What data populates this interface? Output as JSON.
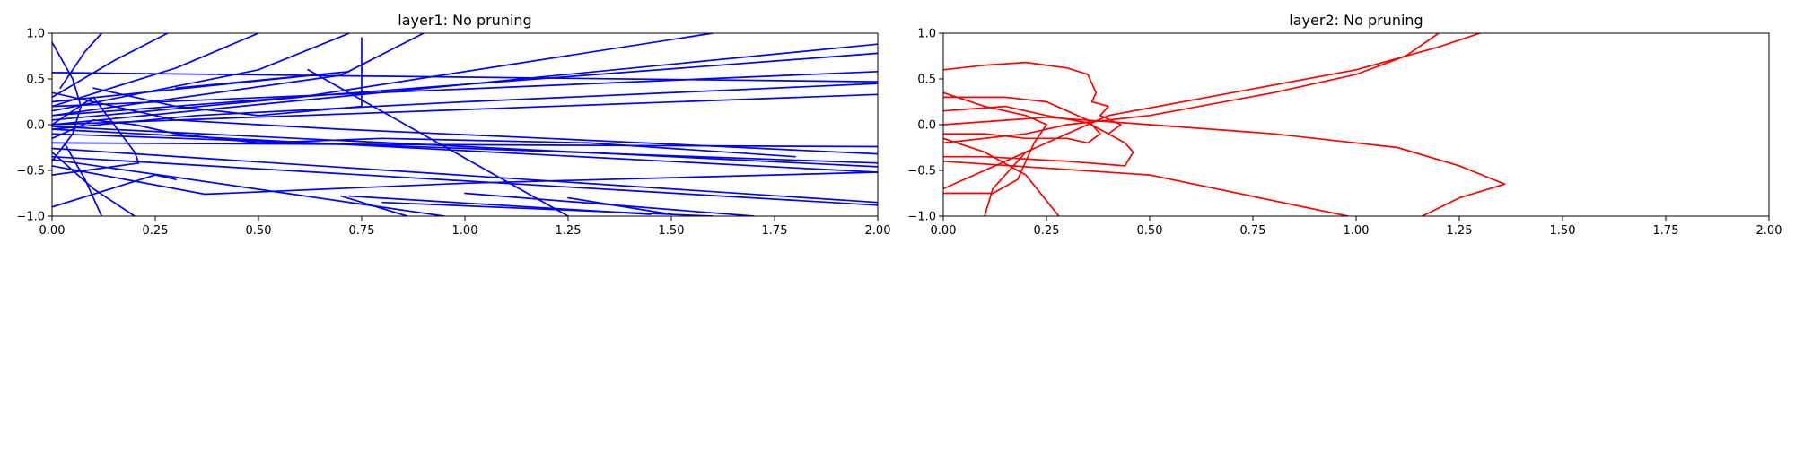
{
  "chart_data": [
    {
      "type": "line",
      "title": "layer1: No pruning",
      "xlabel": "",
      "ylabel": "",
      "xlim": [
        0.0,
        2.0
      ],
      "ylim": [
        -1.0,
        1.0
      ],
      "x_ticks": [
        "0.00",
        "0.25",
        "0.50",
        "0.75",
        "1.00",
        "1.25",
        "1.50",
        "1.75",
        "2.00"
      ],
      "y_ticks": [
        "−1.0",
        "−0.5",
        "0.0",
        "0.5",
        "1.0"
      ],
      "grid": false,
      "legend": "none",
      "color": "#0000ff",
      "series": [
        {
          "points": [
            [
              0.0,
              0.0
            ],
            [
              2.0,
              0.88
            ]
          ]
        },
        {
          "points": [
            [
              0.0,
              0.1
            ],
            [
              2.0,
              0.78
            ]
          ]
        },
        {
          "points": [
            [
              0.0,
              0.2
            ],
            [
              2.0,
              0.58
            ]
          ]
        },
        {
          "points": [
            [
              0.0,
              0.57
            ],
            [
              2.0,
              0.47
            ]
          ]
        },
        {
          "points": [
            [
              0.0,
              0.0
            ],
            [
              2.0,
              0.33
            ]
          ]
        },
        {
          "points": [
            [
              0.0,
              -0.02
            ],
            [
              2.0,
              -0.46
            ]
          ]
        },
        {
          "points": [
            [
              0.0,
              -0.05
            ],
            [
              2.0,
              -0.52
            ]
          ]
        },
        {
          "points": [
            [
              0.0,
              -0.1
            ],
            [
              2.0,
              -0.42
            ]
          ]
        },
        {
          "points": [
            [
              0.0,
              -0.2
            ],
            [
              2.0,
              -0.24
            ]
          ]
        },
        {
          "points": [
            [
              0.0,
              -0.26
            ],
            [
              2.0,
              -0.85
            ]
          ]
        },
        {
          "points": [
            [
              0.0,
              -0.35
            ],
            [
              2.0,
              -0.88
            ]
          ]
        },
        {
          "points": [
            [
              0.0,
              -0.45
            ],
            [
              0.37,
              -0.76
            ],
            [
              1.0,
              -0.64
            ],
            [
              2.0,
              -0.52
            ]
          ]
        },
        {
          "points": [
            [
              0.0,
              0.05
            ],
            [
              0.6,
              0.3
            ],
            [
              1.6,
              1.0
            ]
          ]
        },
        {
          "points": [
            [
              0.0,
              0.1
            ],
            [
              0.7,
              0.54
            ],
            [
              0.9,
              1.0
            ]
          ]
        },
        {
          "points": [
            [
              0.0,
              0.15
            ],
            [
              0.5,
              0.6
            ],
            [
              0.72,
              1.0
            ]
          ]
        },
        {
          "points": [
            [
              0.0,
              0.2
            ],
            [
              0.3,
              0.62
            ],
            [
              0.5,
              1.0
            ]
          ]
        },
        {
          "points": [
            [
              0.0,
              0.3
            ],
            [
              0.15,
              0.7
            ],
            [
              0.28,
              1.0
            ]
          ]
        },
        {
          "points": [
            [
              0.02,
              0.4
            ],
            [
              0.08,
              0.8
            ],
            [
              0.12,
              1.0
            ]
          ]
        },
        {
          "points": [
            [
              0.0,
              0.9
            ],
            [
              0.05,
              0.5
            ],
            [
              0.07,
              0.2
            ],
            [
              0.05,
              -0.1
            ],
            [
              0.0,
              -0.4
            ]
          ]
        },
        {
          "points": [
            [
              0.0,
              -0.3
            ],
            [
              0.1,
              -0.7
            ],
            [
              0.2,
              -1.0
            ]
          ]
        },
        {
          "points": [
            [
              0.03,
              -0.2
            ],
            [
              0.08,
              -0.6
            ],
            [
              0.12,
              -1.0
            ]
          ]
        },
        {
          "points": [
            [
              0.0,
              0.0
            ],
            [
              0.1,
              0.3
            ],
            [
              0.2,
              -0.3
            ],
            [
              0.21,
              -0.42
            ],
            [
              0.0,
              -0.55
            ]
          ]
        },
        {
          "points": [
            [
              0.0,
              -0.15
            ],
            [
              0.05,
              -0.05
            ],
            [
              0.1,
              0.05
            ],
            [
              0.2,
              0.0
            ],
            [
              0.3,
              -0.1
            ],
            [
              0.5,
              -0.2
            ],
            [
              0.8,
              -0.15
            ],
            [
              1.3,
              -0.2
            ],
            [
              1.8,
              -0.35
            ]
          ]
        },
        {
          "points": [
            [
              0.0,
              0.35
            ],
            [
              0.3,
              0.05
            ],
            [
              0.7,
              -0.05
            ],
            [
              1.2,
              -0.15
            ],
            [
              2.0,
              -0.32
            ]
          ]
        },
        {
          "points": [
            [
              0.75,
              0.95
            ],
            [
              0.75,
              0.2
            ],
            [
              0.5,
              0.1
            ],
            [
              0.3,
              0.2
            ],
            [
              0.1,
              0.4
            ]
          ]
        },
        {
          "points": [
            [
              0.62,
              0.6
            ],
            [
              1.25,
              -1.0
            ]
          ]
        },
        {
          "points": [
            [
              0.3,
              0.4
            ],
            [
              0.72,
              0.58
            ],
            [
              0.0,
              0.25
            ]
          ]
        },
        {
          "points": [
            [
              0.72,
              -0.78
            ],
            [
              1.45,
              -0.98
            ]
          ]
        },
        {
          "points": [
            [
              0.8,
              -0.85
            ],
            [
              1.6,
              -1.0
            ]
          ]
        },
        {
          "points": [
            [
              1.0,
              -0.75
            ],
            [
              1.7,
              -1.0
            ]
          ]
        },
        {
          "points": [
            [
              1.25,
              -0.8
            ],
            [
              1.5,
              -0.98
            ]
          ]
        },
        {
          "points": [
            [
              0.7,
              -0.78
            ],
            [
              0.86,
              -1.0
            ]
          ]
        },
        {
          "points": [
            [
              0.0,
              -0.38
            ],
            [
              0.95,
              -1.0
            ]
          ]
        },
        {
          "points": [
            [
              0.0,
              -0.9
            ],
            [
              0.25,
              -0.55
            ],
            [
              0.3,
              -0.6
            ]
          ]
        },
        {
          "points": [
            [
              0.0,
              -0.05
            ],
            [
              0.35,
              0.1
            ],
            [
              1.0,
              0.25
            ],
            [
              2.0,
              0.45
            ]
          ]
        }
      ]
    },
    {
      "type": "line",
      "title": "layer2: No pruning",
      "xlabel": "",
      "ylabel": "",
      "xlim": [
        0.0,
        2.0
      ],
      "ylim": [
        -1.0,
        1.0
      ],
      "x_ticks": [
        "0.00",
        "0.25",
        "0.50",
        "0.75",
        "1.00",
        "1.25",
        "1.50",
        "1.75",
        "2.00"
      ],
      "y_ticks": [
        "−1.0",
        "−0.5",
        "0.0",
        "0.5",
        "1.0"
      ],
      "grid": false,
      "legend": "none",
      "color": "#ff0000",
      "series": [
        {
          "points": [
            [
              0.0,
              0.6
            ],
            [
              0.1,
              0.65
            ],
            [
              0.2,
              0.68
            ],
            [
              0.3,
              0.62
            ],
            [
              0.35,
              0.55
            ],
            [
              0.37,
              0.35
            ],
            [
              0.36,
              0.25
            ],
            [
              0.4,
              0.2
            ],
            [
              0.38,
              0.1
            ],
            [
              0.43,
              0.0
            ],
            [
              0.4,
              -0.1
            ],
            [
              0.44,
              -0.2
            ],
            [
              0.46,
              -0.3
            ],
            [
              0.44,
              -0.45
            ],
            [
              0.3,
              -0.4
            ],
            [
              0.1,
              -0.35
            ],
            [
              0.0,
              -0.35
            ]
          ]
        },
        {
          "points": [
            [
              0.0,
              0.3
            ],
            [
              0.15,
              0.3
            ],
            [
              0.25,
              0.25
            ],
            [
              0.3,
              0.15
            ],
            [
              0.35,
              0.05
            ],
            [
              0.38,
              -0.1
            ],
            [
              0.35,
              -0.2
            ],
            [
              0.3,
              -0.15
            ],
            [
              0.2,
              -0.15
            ],
            [
              0.1,
              -0.1
            ],
            [
              0.0,
              -0.1
            ]
          ]
        },
        {
          "points": [
            [
              0.0,
              0.35
            ],
            [
              0.1,
              0.2
            ],
            [
              0.2,
              0.1
            ],
            [
              0.25,
              0.0
            ],
            [
              0.22,
              -0.2
            ],
            [
              0.2,
              -0.4
            ],
            [
              0.18,
              -0.6
            ],
            [
              0.12,
              -0.75
            ],
            [
              0.0,
              -0.75
            ]
          ]
        },
        {
          "points": [
            [
              0.0,
              -0.7
            ],
            [
              0.15,
              -0.4
            ],
            [
              0.25,
              -0.2
            ],
            [
              0.4,
              0.1
            ],
            [
              0.7,
              0.35
            ],
            [
              1.0,
              0.6
            ],
            [
              1.2,
              0.85
            ],
            [
              1.3,
              1.0
            ]
          ]
        },
        {
          "points": [
            [
              0.0,
              -0.2
            ],
            [
              0.2,
              -0.1
            ],
            [
              0.3,
              0.0
            ],
            [
              0.5,
              0.1
            ],
            [
              0.8,
              0.35
            ],
            [
              1.0,
              0.55
            ],
            [
              1.12,
              0.75
            ],
            [
              1.2,
              1.0
            ]
          ]
        },
        {
          "points": [
            [
              0.0,
              0.0
            ],
            [
              0.25,
              0.08
            ],
            [
              0.5,
              0.0
            ],
            [
              0.8,
              -0.1
            ],
            [
              1.1,
              -0.25
            ],
            [
              1.25,
              -0.45
            ],
            [
              1.36,
              -0.65
            ],
            [
              1.25,
              -0.8
            ],
            [
              1.16,
              -1.0
            ]
          ]
        },
        {
          "points": [
            [
              0.0,
              -0.15
            ],
            [
              0.1,
              -0.3
            ],
            [
              0.2,
              -0.55
            ],
            [
              0.28,
              -1.0
            ]
          ]
        },
        {
          "points": [
            [
              0.2,
              -0.3
            ],
            [
              0.12,
              -0.7
            ],
            [
              0.1,
              -1.0
            ]
          ]
        },
        {
          "points": [
            [
              0.0,
              -0.4
            ],
            [
              0.5,
              -0.55
            ],
            [
              0.98,
              -1.0
            ]
          ]
        },
        {
          "points": [
            [
              0.0,
              0.15
            ],
            [
              0.15,
              0.2
            ],
            [
              0.25,
              0.1
            ],
            [
              0.35,
              0.02
            ],
            [
              0.4,
              -0.1
            ]
          ]
        }
      ]
    }
  ]
}
